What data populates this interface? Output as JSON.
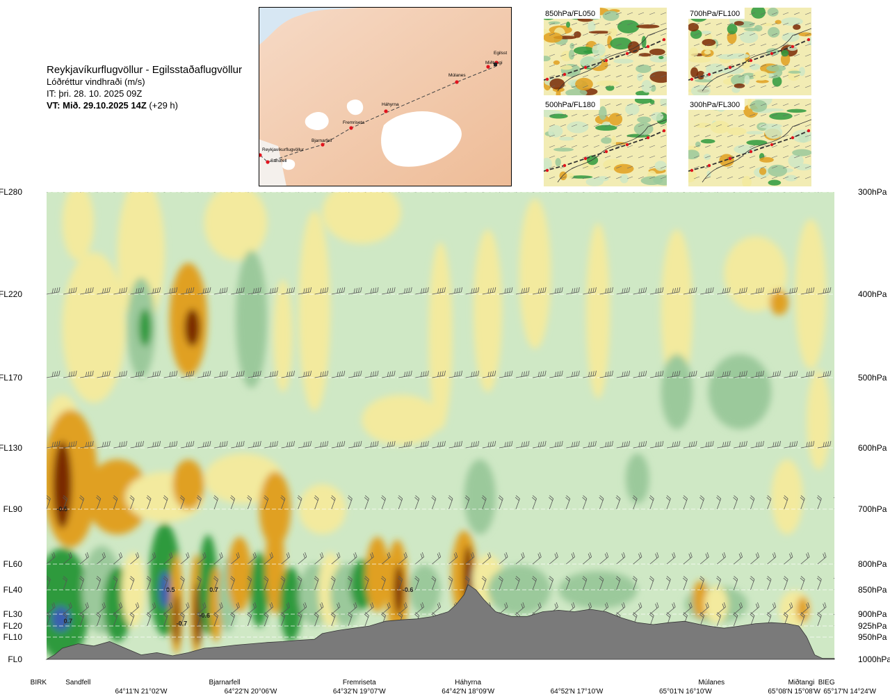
{
  "header": {
    "title": "Reykjavíkurflugvöllur - Egilsstaðaflugvöllur",
    "subtitle": "Lóðréttur vindhraði (m/s)",
    "issue_time": "IT: þri. 28. 10. 2025 09Z",
    "valid_time_bold": "VT: Mið. 29.10.2025 14Z",
    "valid_time_offset": "(+29 h)"
  },
  "map": {
    "points": [
      "Reykjavíkurflugvöllur",
      "Sandfell",
      "Bjarnarfell",
      "Fremriseta",
      "Háhyrna",
      "Múlanes",
      "Miðtangi",
      "Egilsst"
    ]
  },
  "inset_maps": [
    {
      "label": "850hPa/FL050"
    },
    {
      "label": "700hPa/FL100"
    },
    {
      "label": "500hPa/FL180"
    },
    {
      "label": "300hPa/FL300"
    }
  ],
  "colors": {
    "strong_down": "#7a2a05",
    "down": "#e0a020",
    "weak_down": "#f3ea9e",
    "neutral": "#fefee6",
    "weak_up": "#cfe8c5",
    "up": "#9bc99b",
    "strong_up": "#2e9a3e",
    "max_up": "#3a5fb0",
    "terrain": "#7a7a7a"
  },
  "chart_data": {
    "type": "heatmap",
    "title": "Lóðréttur vindhraði (m/s)",
    "left_levels": [
      {
        "label": "FL280",
        "pressure": 300
      },
      {
        "label": "FL220",
        "pressure": 400
      },
      {
        "label": "FL170",
        "pressure": 500
      },
      {
        "label": "FL130",
        "pressure": 600
      },
      {
        "label": "FL90",
        "pressure": 700
      },
      {
        "label": "FL60",
        "pressure": 800
      },
      {
        "label": "FL40",
        "pressure": 850
      },
      {
        "label": "FL30",
        "pressure": 900
      },
      {
        "label": "FL20",
        "pressure": 925
      },
      {
        "label": "FL10",
        "pressure": 950
      },
      {
        "label": "FL0",
        "pressure": 1000
      }
    ],
    "right_levels": [
      "300hPa",
      "400hPa",
      "500hPa",
      "600hPa",
      "700hPa",
      "800hPa",
      "850hPa",
      "900hPa",
      "925hPa",
      "950hPa",
      "1000hPa"
    ],
    "x_waypoints": [
      {
        "name": "BIRK",
        "pos": 0.0
      },
      {
        "name": "Sandfell",
        "pos": 0.04
      },
      {
        "name": "Bjarnarfell",
        "pos": 0.226
      },
      {
        "name": "Fremriseta",
        "pos": 0.397
      },
      {
        "name": "Háhyrna",
        "pos": 0.535
      },
      {
        "name": "Múlanes",
        "pos": 0.844
      },
      {
        "name": "Miðtangi",
        "pos": 0.958
      },
      {
        "name": "BIEG",
        "pos": 0.99
      }
    ],
    "x_coordinates": [
      {
        "label": "64°11'N 21°02'W",
        "pos": 0.12
      },
      {
        "label": "64°22'N 20°06'W",
        "pos": 0.259
      },
      {
        "label": "64°32'N 19°07'W",
        "pos": 0.397
      },
      {
        "label": "64°42'N 18°09'W",
        "pos": 0.535
      },
      {
        "label": "64°52'N 17°10'W",
        "pos": 0.673
      },
      {
        "label": "65°01'N 16°10'W",
        "pos": 0.811
      },
      {
        "label": "65°08'N 15°08'W",
        "pos": 0.949
      },
      {
        "label": "65°17'N 14°24'W",
        "pos": 1.0
      }
    ],
    "value_labels": [
      {
        "text": "-0.5",
        "pos": 0.011,
        "pressure": 700
      },
      {
        "text": "0.7",
        "pos": 0.02,
        "pressure": 915
      },
      {
        "text": "0.5",
        "pos": 0.15,
        "pressure": 850
      },
      {
        "text": "0.7",
        "pos": 0.205,
        "pressure": 850
      },
      {
        "text": "-0.7",
        "pos": 0.163,
        "pressure": 920
      },
      {
        "text": "-0.6",
        "pos": 0.192,
        "pressure": 903
      },
      {
        "text": "-0.6",
        "pos": 0.45,
        "pressure": 850
      }
    ],
    "legend": []
  }
}
